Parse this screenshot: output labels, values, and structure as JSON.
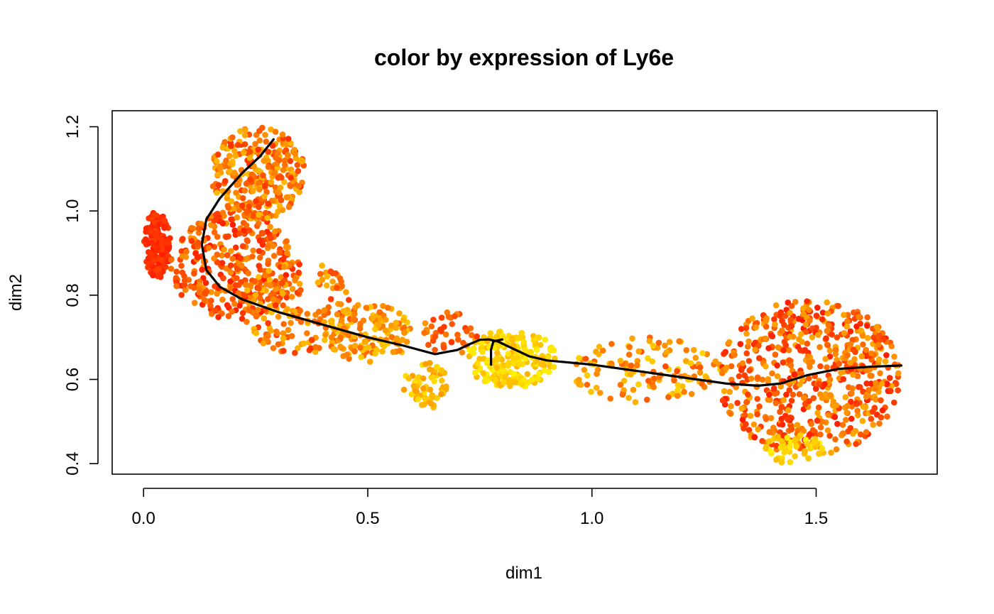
{
  "chart_data": {
    "type": "scatter",
    "title": "color by expression of Ly6e",
    "xlabel": "dim1",
    "ylabel": "dim2",
    "xlim": [
      -0.07,
      1.77
    ],
    "ylim": [
      0.375,
      1.238
    ],
    "x_ticks": [
      0.0,
      0.5,
      1.0,
      1.5
    ],
    "x_tick_labels": [
      "0.0",
      "0.5",
      "1.0",
      "1.5"
    ],
    "y_ticks": [
      0.4,
      0.6,
      0.8,
      1.0,
      1.2
    ],
    "y_tick_labels": [
      "0.4",
      "0.6",
      "0.8",
      "1.0",
      "1.2"
    ],
    "grid": false,
    "legend": "none",
    "colors": {
      "low": "#FFF200",
      "mid": "#FF9900",
      "high": "#FF1A00",
      "curve": "#000000"
    },
    "clusters": [
      {
        "x": [
          0.0,
          0.06
        ],
        "y": [
          0.84,
          1.0
        ],
        "n": 170,
        "level": [
          0.85,
          1.0
        ]
      },
      {
        "x": [
          0.06,
          0.34
        ],
        "y": [
          0.74,
          1.0
        ],
        "n": 340,
        "level": [
          0.5,
          1.0
        ]
      },
      {
        "x": [
          0.15,
          0.36
        ],
        "y": [
          0.98,
          1.2
        ],
        "n": 300,
        "level": [
          0.3,
          0.9
        ]
      },
      {
        "x": [
          0.22,
          0.48
        ],
        "y": [
          0.66,
          0.88
        ],
        "n": 180,
        "level": [
          0.3,
          0.9
        ]
      },
      {
        "x": [
          0.4,
          0.6
        ],
        "y": [
          0.64,
          0.78
        ],
        "n": 140,
        "level": [
          0.2,
          0.7
        ]
      },
      {
        "x": [
          0.58,
          0.68
        ],
        "y": [
          0.53,
          0.64
        ],
        "n": 60,
        "level": [
          0.1,
          0.5
        ]
      },
      {
        "x": [
          0.62,
          0.75
        ],
        "y": [
          0.66,
          0.76
        ],
        "n": 40,
        "level": [
          0.5,
          0.9
        ]
      },
      {
        "x": [
          0.72,
          0.92
        ],
        "y": [
          0.58,
          0.72
        ],
        "n": 220,
        "level": [
          0.0,
          0.35
        ]
      },
      {
        "x": [
          0.95,
          1.3
        ],
        "y": [
          0.54,
          0.7
        ],
        "n": 130,
        "level": [
          0.15,
          0.8
        ]
      },
      {
        "x": [
          1.28,
          1.69
        ],
        "y": [
          0.42,
          0.79
        ],
        "n": 620,
        "level": [
          0.4,
          1.0
        ]
      },
      {
        "x": [
          1.38,
          1.52
        ],
        "y": [
          0.4,
          0.47
        ],
        "n": 50,
        "level": [
          0.0,
          0.35
        ]
      }
    ],
    "principal_curve": {
      "x": [
        0.29,
        0.26,
        0.22,
        0.17,
        0.14,
        0.13,
        0.14,
        0.17,
        0.22,
        0.3,
        0.4,
        0.5,
        0.58,
        0.65,
        0.7,
        0.73,
        0.75,
        0.77,
        0.79,
        0.82,
        0.86,
        0.9,
        1.0,
        1.1,
        1.2,
        1.3,
        1.37,
        1.42,
        1.48,
        1.55,
        1.62,
        1.69
      ],
      "y": [
        1.17,
        1.13,
        1.09,
        1.03,
        0.98,
        0.92,
        0.86,
        0.82,
        0.79,
        0.76,
        0.73,
        0.7,
        0.68,
        0.66,
        0.67,
        0.685,
        0.694,
        0.695,
        0.69,
        0.675,
        0.655,
        0.645,
        0.635,
        0.62,
        0.605,
        0.59,
        0.585,
        0.59,
        0.61,
        0.625,
        0.63,
        0.633
      ]
    },
    "branch_curve": {
      "x": [
        0.775,
        0.775,
        0.78,
        0.8
      ],
      "y": [
        0.635,
        0.67,
        0.69,
        0.695
      ]
    }
  }
}
